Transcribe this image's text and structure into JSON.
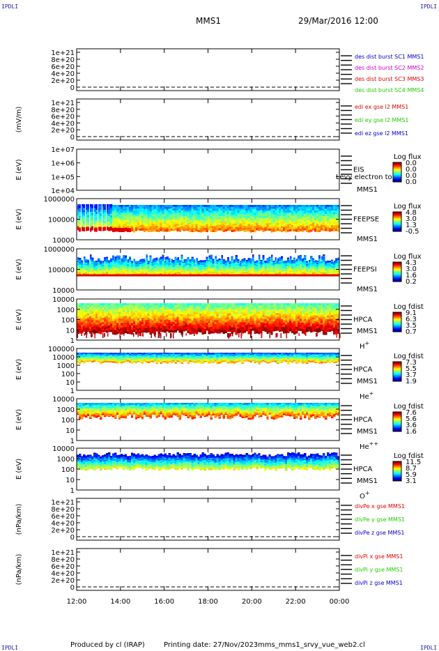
{
  "corner_mark": "IPDLI",
  "header": {
    "spacecraft": "MMS1",
    "datetime": "29/Mar/2016 12:00"
  },
  "footer": {
    "produced_by": "Produced by cl (IRAP)",
    "printing_date": "Printing date: 27/Nov/2023",
    "script": "mms_mms1_srvy_vue_web2.cl"
  },
  "time_axis": {
    "ticks": [
      "12:00",
      "14:00",
      "16:00",
      "18:00",
      "20:00",
      "22:00",
      "00:00"
    ]
  },
  "colors": {
    "red": "#e00000",
    "magenta": "#d000d0",
    "green": "#22cc00",
    "blue": "#0000cc"
  },
  "panels": [
    {
      "id": "des-dist",
      "type": "line",
      "ylabel": "",
      "yticks": [
        "1e+21",
        "8e+20",
        "6e+20",
        "4e+20",
        "2e+20",
        "0"
      ],
      "ylim": [
        0,
        1e+21
      ],
      "legend": [
        {
          "text": "des dist burst SC1 MMS1",
          "color": "#0000cc"
        },
        {
          "text": "des dist burst SC2 MMS2",
          "color": "#d000d0"
        },
        {
          "text": "des dist burst SC3 MMS3",
          "color": "#e00000"
        },
        {
          "text": "des dist burst SC4 MMS4",
          "color": "#22cc00"
        }
      ]
    },
    {
      "id": "edi-e",
      "type": "line",
      "ylabel": "(mV/m)",
      "yticks": [
        "1e+21",
        "8e+20",
        "6e+20",
        "4e+20",
        "2e+20",
        "0"
      ],
      "ylim": [
        0,
        1e+21
      ],
      "legend": [
        {
          "text": "edi ex gse l2 MMS1",
          "color": "#e00000"
        },
        {
          "text": "edi ey gse l2 MMS1",
          "color": "#22cc00"
        },
        {
          "text": "edi ez gse l2 MMS1",
          "color": "#0000cc"
        }
      ]
    },
    {
      "id": "eis",
      "type": "heatmap",
      "ylabel": "E (eV)",
      "yticks": [
        "1e+07",
        "1e+06",
        "1e+05",
        "1e+04"
      ],
      "instrument": "EIS",
      "note": "Levy electron to",
      "sc": "MMS1",
      "species": "",
      "cbar_title": "Log flux",
      "cbar_ticks": [
        "0.0",
        "0.0",
        "0.0",
        "0.0"
      ]
    },
    {
      "id": "feepse",
      "type": "heatmap",
      "ylabel": "E (eV)",
      "yticks": [
        "1000000",
        "100000",
        "10000"
      ],
      "instrument": "FEEPSE",
      "note": "",
      "sc": "MMS1",
      "species": "",
      "cbar_title": "Log flux",
      "cbar_ticks": [
        "4.8",
        "3.0",
        "1.3",
        "-0.5"
      ]
    },
    {
      "id": "feepsi",
      "type": "heatmap",
      "ylabel": "E (eV)",
      "yticks": [
        "1000000",
        "100000",
        "10000"
      ],
      "instrument": "FEEPSI",
      "note": "",
      "sc": "MMS1",
      "species": "",
      "cbar_title": "Log flux",
      "cbar_ticks": [
        "4.3",
        "3.0",
        "1.6",
        "0.2"
      ]
    },
    {
      "id": "hpca-h",
      "type": "heatmap",
      "ylabel": "E (eV)",
      "yticks": [
        "10000",
        "1000",
        "100",
        "10",
        "1"
      ],
      "instrument": "HPCA",
      "note": "",
      "sc": "MMS1",
      "species": "H",
      "species_sup": "+",
      "cbar_title": "Log fdist",
      "cbar_ticks": [
        "9.1",
        "6.3",
        "3.5",
        "0.7"
      ]
    },
    {
      "id": "hpca-he",
      "type": "heatmap",
      "ylabel": "E (eV)",
      "yticks": [
        "100000",
        "10000",
        "1000",
        "100",
        "10",
        "1"
      ],
      "instrument": "HPCA",
      "note": "",
      "sc": "MMS1",
      "species": "He",
      "species_sup": "+",
      "cbar_title": "Log fdist",
      "cbar_ticks": [
        "7.3",
        "5.5",
        "3.7",
        "1.9"
      ]
    },
    {
      "id": "hpca-he2",
      "type": "heatmap",
      "ylabel": "E (eV)",
      "yticks": [
        "10000",
        "1000",
        "100",
        "10",
        "1"
      ],
      "instrument": "HPCA",
      "note": "",
      "sc": "MMS1",
      "species": "He",
      "species_sup": "++",
      "cbar_title": "Log fdist",
      "cbar_ticks": [
        "7.6",
        "5.6",
        "3.6",
        "1.6"
      ]
    },
    {
      "id": "hpca-o",
      "type": "heatmap",
      "ylabel": "E (eV)",
      "yticks": [
        "10000",
        "1000",
        "100",
        "10",
        "1"
      ],
      "instrument": "HPCA",
      "note": "",
      "sc": "MMS1",
      "species": "O",
      "species_sup": "+",
      "cbar_title": "Log fdist",
      "cbar_ticks": [
        "11.5",
        "8.7",
        "5.9",
        "3.1"
      ]
    },
    {
      "id": "divpe",
      "type": "line",
      "ylabel": "(nPa/km)",
      "yticks": [
        "1e+21",
        "8e+20",
        "6e+20",
        "4e+20",
        "2e+20",
        "0"
      ],
      "ylim": [
        0,
        1e+21
      ],
      "legend": [
        {
          "text": "divPe x gse MMS1",
          "color": "#e00000"
        },
        {
          "text": "divPe y gse MMS1",
          "color": "#22cc00"
        },
        {
          "text": "divPe z gse MMS1",
          "color": "#0000cc"
        }
      ]
    },
    {
      "id": "divpi",
      "type": "line",
      "ylabel": "(nPa/km)",
      "yticks": [
        "1e+21",
        "8e+20",
        "6e+20",
        "4e+20",
        "2e+20",
        "0"
      ],
      "ylim": [
        0,
        1e+21
      ],
      "legend": [
        {
          "text": "divPi x gse MMS1",
          "color": "#e00000"
        },
        {
          "text": "divPi y gse MMS1",
          "color": "#22cc00"
        },
        {
          "text": "divPi z gse MMS1",
          "color": "#0000cc"
        }
      ]
    }
  ],
  "chart_data": {
    "type": "heatmap",
    "title": "MMS1",
    "x": [
      "12:00",
      "14:00",
      "16:00",
      "18:00",
      "20:00",
      "22:00",
      "00:00"
    ],
    "xlim": [
      "29/Mar/2016 12:00",
      "30/Mar/2016 00:00"
    ],
    "series": [
      {
        "name": "FEEPSE",
        "ylim_eV": [
          10000,
          1000000
        ],
        "zlim": [
          -0.5,
          4.8
        ]
      },
      {
        "name": "FEEPSI",
        "ylim_eV": [
          10000,
          1000000
        ],
        "zlim": [
          0.2,
          4.3
        ]
      },
      {
        "name": "HPCA H+",
        "ylim_eV": [
          1,
          10000
        ],
        "zlim": [
          0.7,
          9.1
        ]
      },
      {
        "name": "HPCA He+",
        "ylim_eV": [
          1,
          100000
        ],
        "zlim": [
          1.9,
          7.3
        ]
      },
      {
        "name": "HPCA He++",
        "ylim_eV": [
          1,
          10000
        ],
        "zlim": [
          1.6,
          7.6
        ]
      },
      {
        "name": "HPCA O+",
        "ylim_eV": [
          1,
          10000
        ],
        "zlim": [
          3.1,
          11.5
        ]
      }
    ]
  }
}
